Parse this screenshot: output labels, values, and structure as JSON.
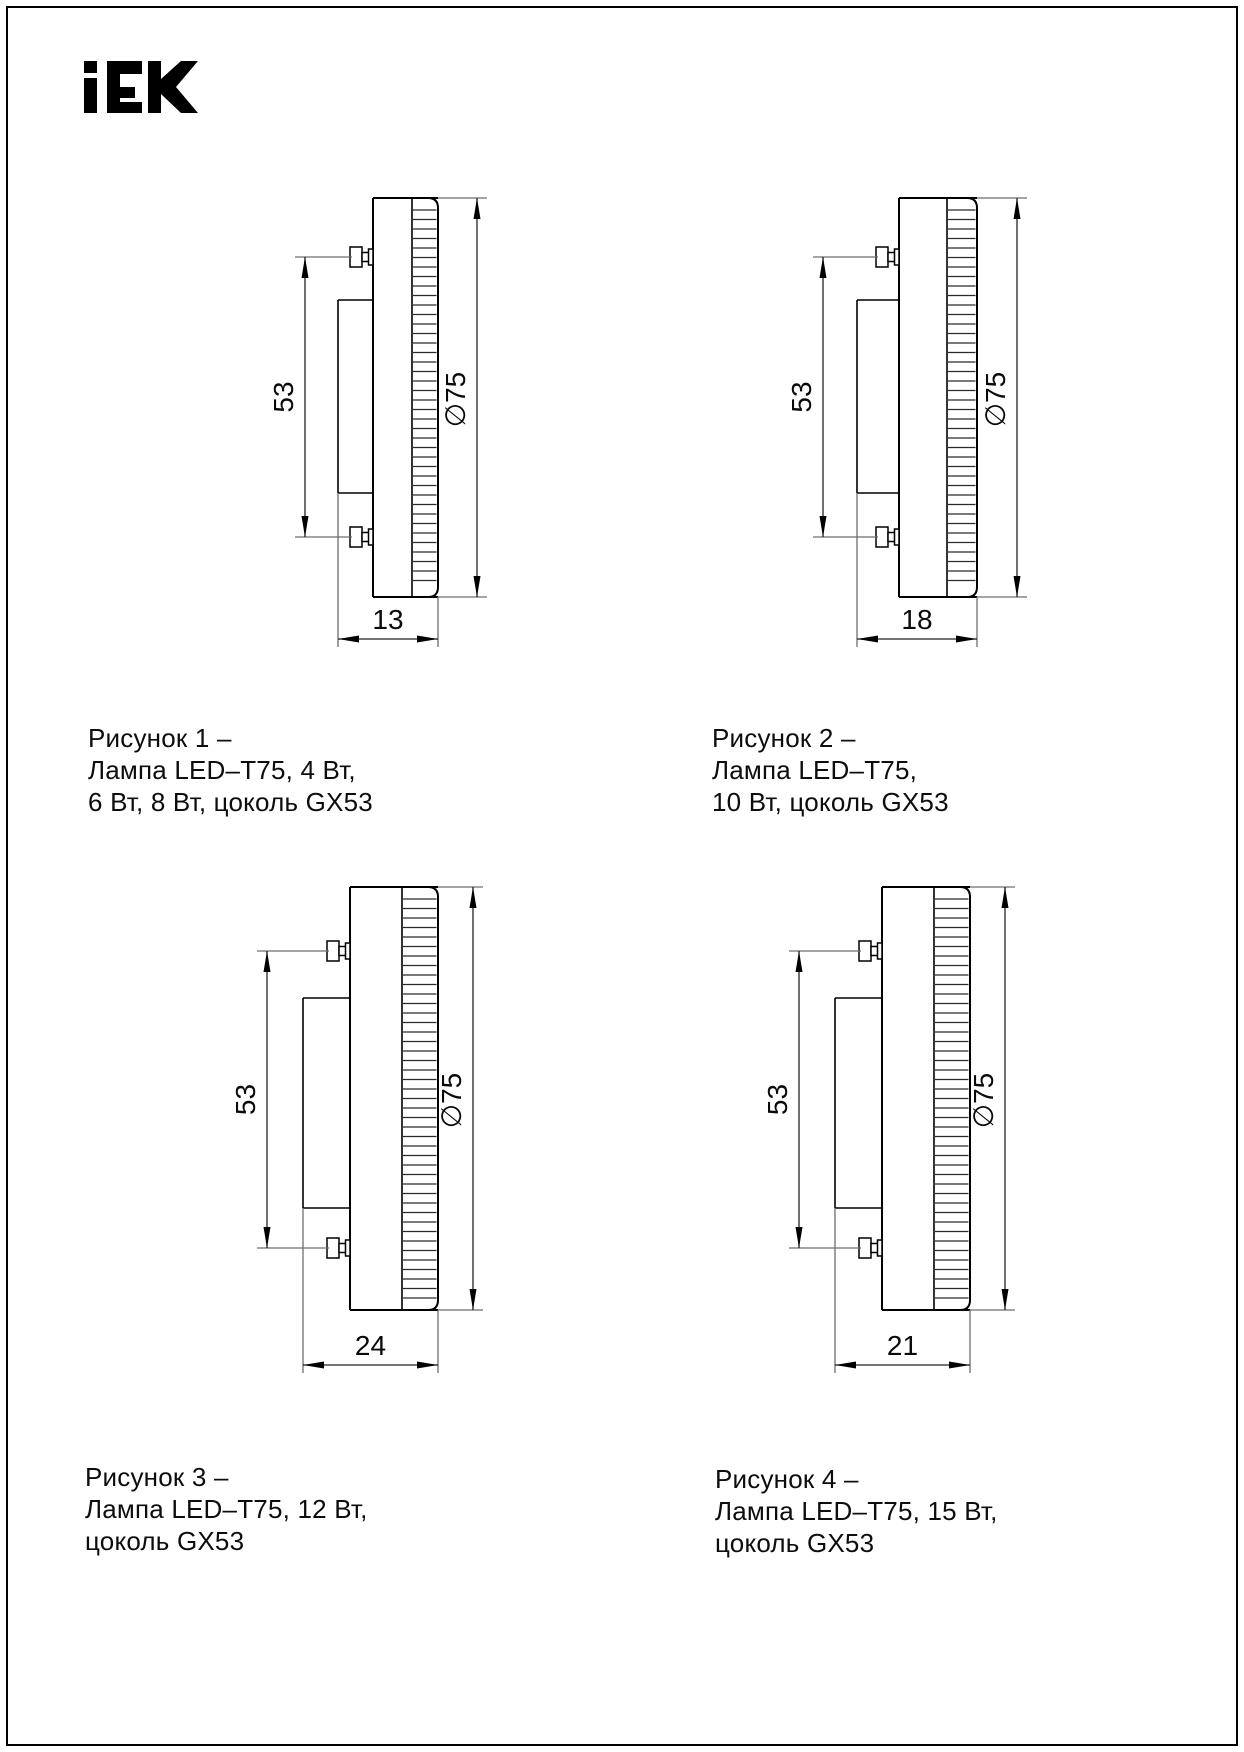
{
  "logo": {
    "text": "iEK",
    "alt": "IEK"
  },
  "figures": [
    {
      "name": "Рисунок 1",
      "dim_height": "53",
      "dim_diameter": "∅75",
      "dim_depth": "13",
      "caption_lines": [
        "Рисунок 1 –",
        "Лампа LED–T75, 4 Вт,",
        "6 Вт, 8 Вт, цоколь GX53"
      ]
    },
    {
      "name": "Рисунок 2",
      "dim_height": "53",
      "dim_diameter": "∅75",
      "dim_depth": "18",
      "caption_lines": [
        "Рисунок 2 –",
        "Лампа LED–T75,",
        "10 Вт, цоколь GX53"
      ]
    },
    {
      "name": "Рисунок 3",
      "dim_height": "53",
      "dim_diameter": "∅75",
      "dim_depth": "24",
      "caption_lines": [
        "Рисунок 3 –",
        "Лампа LED–T75, 12 Вт,",
        "цоколь GX53"
      ]
    },
    {
      "name": "Рисунок 4",
      "dim_height": "53",
      "dim_diameter": "∅75",
      "dim_depth": "21",
      "caption_lines": [
        "Рисунок 4 –",
        "Лампа LED–T75, 15 Вт,",
        "цоколь GX53"
      ]
    }
  ]
}
